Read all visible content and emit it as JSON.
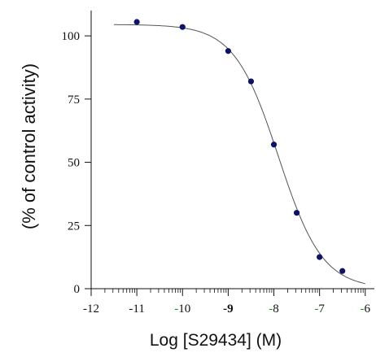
{
  "chart_data": {
    "type": "scatter",
    "title": "",
    "xlabel": "Log [S29434] (M)",
    "ylabel": "(% of control activity)",
    "xlim": [
      -12,
      -5.8
    ],
    "ylim": [
      0,
      110
    ],
    "x_ticks": [
      {
        "value": -12,
        "minus": "-",
        "num": "12",
        "minus_color": "#111111",
        "bold": false
      },
      {
        "value": -11,
        "minus": "-",
        "num": "11",
        "minus_color": "#111111",
        "bold": false
      },
      {
        "value": -10,
        "minus": "-",
        "num": "10",
        "minus_color": "#2e8b2e",
        "bold": false
      },
      {
        "value": -9,
        "minus": "-",
        "num": "9",
        "minus_color": "#111111",
        "bold": true
      },
      {
        "value": -8,
        "minus": "-",
        "num": "8",
        "minus_color": "#2e8b2e",
        "bold": false
      },
      {
        "value": -7,
        "minus": "-",
        "num": "7",
        "minus_color": "#2e8b2e",
        "bold": false
      },
      {
        "value": -6,
        "minus": "-",
        "num": "6",
        "minus_color": "#2e8b2e",
        "bold": false
      }
    ],
    "y_ticks": [
      0,
      25,
      50,
      75,
      100
    ],
    "series": [
      {
        "points": [
          {
            "x": -11.0,
            "y": 105.5
          },
          {
            "x": -10.0,
            "y": 103.5
          },
          {
            "x": -9.0,
            "y": 94.0
          },
          {
            "x": -8.5,
            "y": 82.0
          },
          {
            "x": -8.0,
            "y": 57.0
          },
          {
            "x": -7.5,
            "y": 30.0
          },
          {
            "x": -7.0,
            "y": 12.5
          },
          {
            "x": -6.5,
            "y": 7.0
          }
        ]
      }
    ],
    "fit_curve": {
      "model": "sigmoid",
      "top": 104.5,
      "bottom": 0,
      "log_ic50": -7.9,
      "hill_slope": -0.9,
      "x_range": [
        -11.5,
        -6.0
      ]
    },
    "colors": {
      "points": "#0d1366",
      "curve": "#555555",
      "axis": "#111111"
    },
    "grid": false,
    "legend": "none"
  }
}
